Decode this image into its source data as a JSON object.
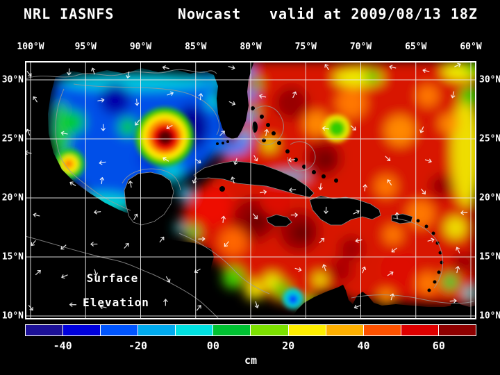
{
  "title": {
    "left": "NRL IASNFS",
    "mid": "Nowcast",
    "right": "valid at 2009/08/13 18Z"
  },
  "axes": {
    "lon_labels": [
      "100°W",
      "95°W",
      "90°W",
      "85°W",
      "80°W",
      "75°W",
      "70°W",
      "65°W",
      "60°W"
    ],
    "lat_labels": [
      "30°N",
      "25°N",
      "20°N",
      "15°N",
      "10°N"
    ]
  },
  "map_annotation": {
    "line1": "Surface",
    "line2": "Elevation"
  },
  "colorbar": {
    "units": "cm",
    "tick_labels": [
      "-40",
      "-20",
      "00",
      "20",
      "40",
      "60"
    ],
    "min": -50,
    "max": 70,
    "segment_colors": [
      "#1c1096",
      "#0000dc",
      "#0055ff",
      "#00aaee",
      "#00e0e0",
      "#00c232",
      "#7ce000",
      "#ffee00",
      "#ffb000",
      "#ff5200",
      "#df0000",
      "#8e0000"
    ]
  }
}
